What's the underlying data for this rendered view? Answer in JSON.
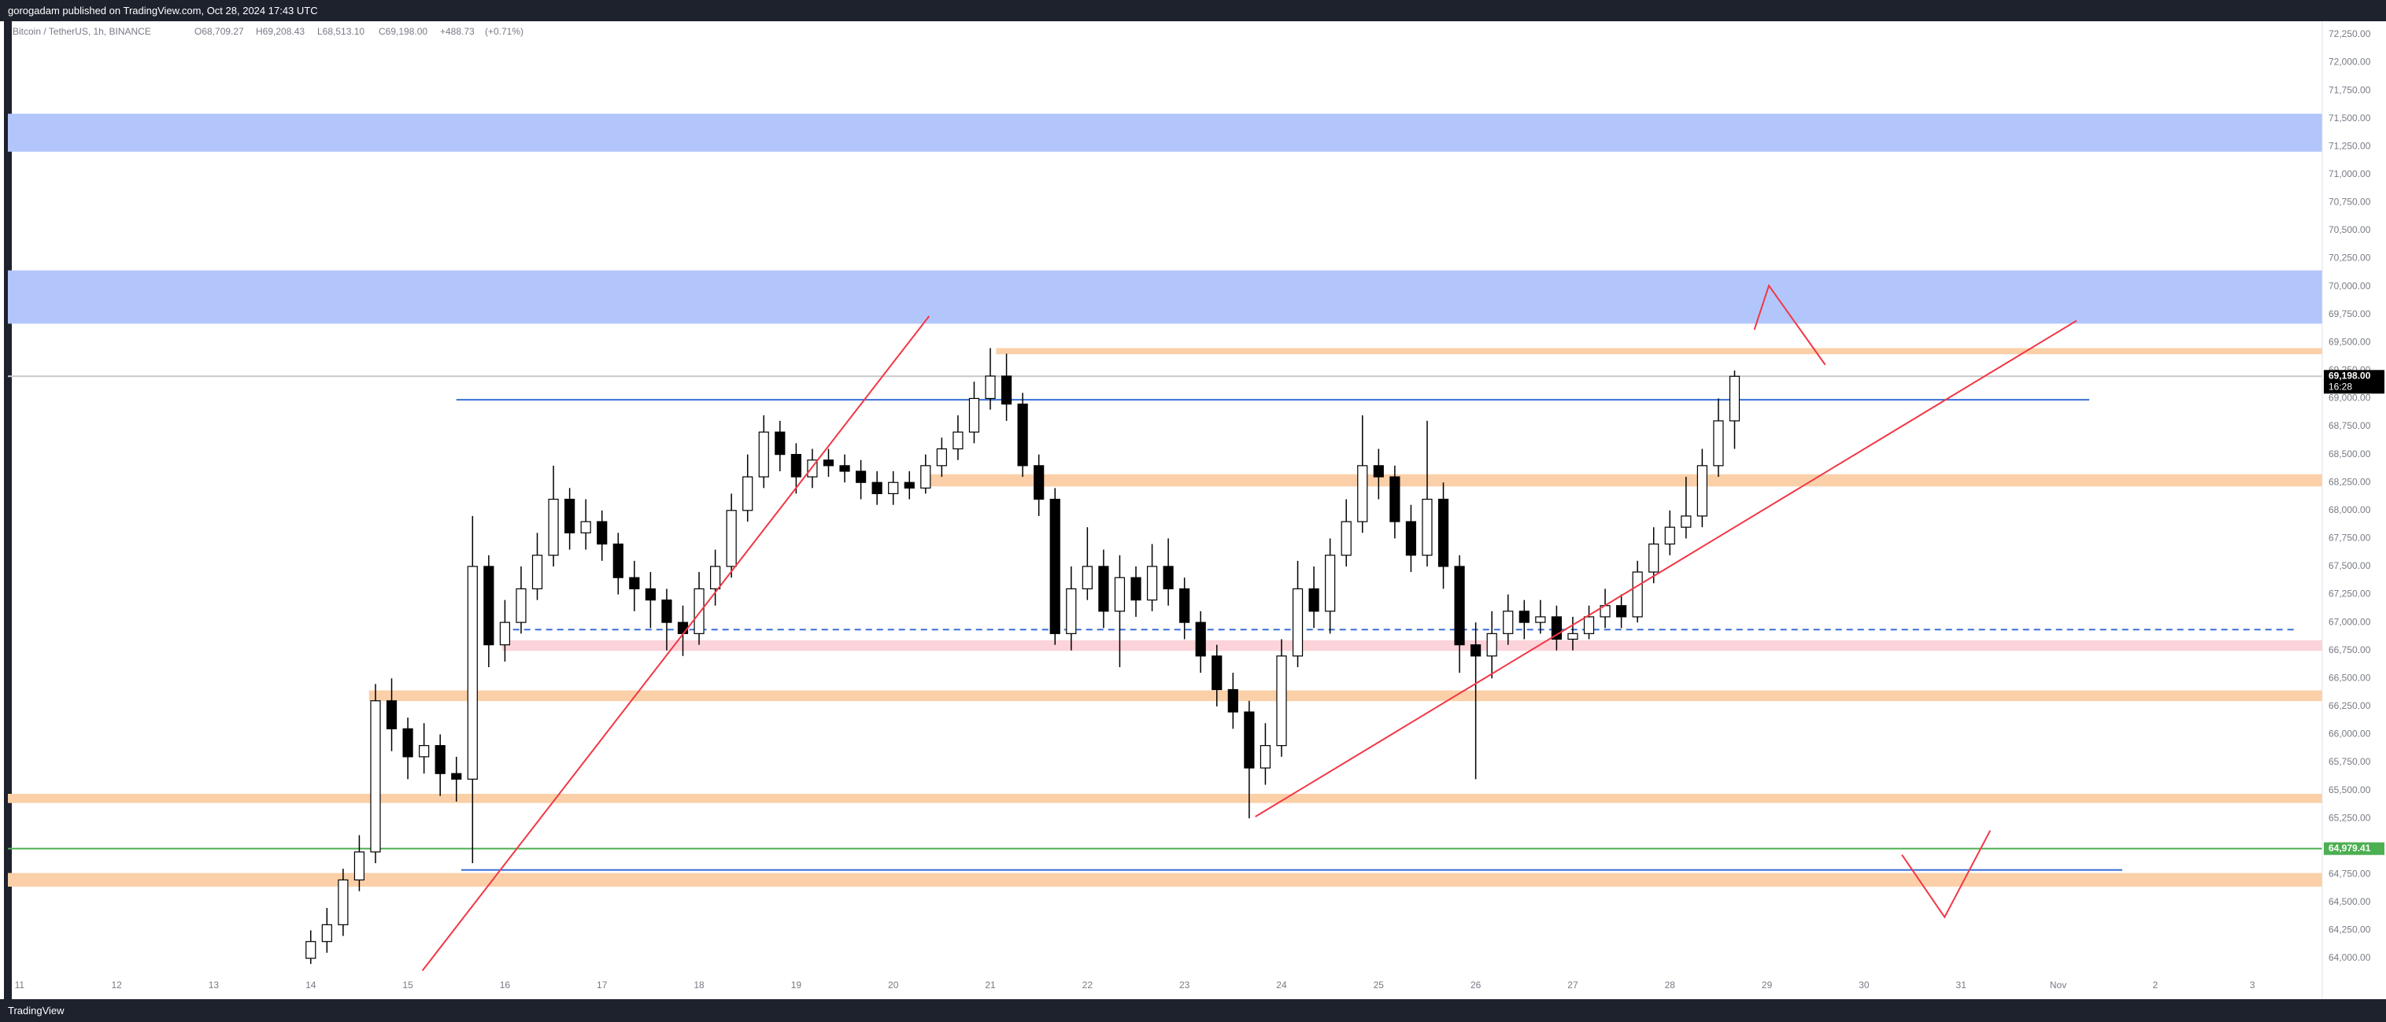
{
  "header": {
    "text": "gorogadam published on TradingView.com, Oct 28, 2024 17:43 UTC"
  },
  "footer": {
    "brand": "TradingView"
  },
  "chart_data": {
    "type": "candlestick",
    "title": "Bitcoin / TetherUS, 1h, BINANCE",
    "legend_values": [
      {
        "value": 68709.27,
        "label": "O68,709.27"
      },
      {
        "value": 69208.43,
        "label": "H69,208.43"
      },
      {
        "value": 68513.1,
        "label": "L68,513.10"
      },
      {
        "value": 69198.0,
        "label": "C69,198.00"
      },
      {
        "value": 488.73,
        "label": "+488.73"
      },
      {
        "value": 0.71,
        "label": "(+0.71%)"
      }
    ],
    "up_color": "#ffffff",
    "down_color": "#000000",
    "wick_color": "#000000",
    "xlim": [
      -0.12,
      23.72
    ],
    "ylim": [
      63895,
      72369
    ],
    "grid": false,
    "xticks": [
      {
        "value": 0,
        "label": "11"
      },
      {
        "value": 1,
        "label": "12"
      },
      {
        "value": 2,
        "label": "13"
      },
      {
        "value": 3,
        "label": "14"
      },
      {
        "value": 4,
        "label": "15"
      },
      {
        "value": 5,
        "label": "16"
      },
      {
        "value": 6,
        "label": "17"
      },
      {
        "value": 7,
        "label": "18"
      },
      {
        "value": 8,
        "label": "19"
      },
      {
        "value": 9,
        "label": "20"
      },
      {
        "value": 10,
        "label": "21"
      },
      {
        "value": 11,
        "label": "22"
      },
      {
        "value": 12,
        "label": "23"
      },
      {
        "value": 13,
        "label": "24"
      },
      {
        "value": 14,
        "label": "25"
      },
      {
        "value": 15,
        "label": "26"
      },
      {
        "value": 16,
        "label": "27"
      },
      {
        "value": 17,
        "label": "28"
      },
      {
        "value": 18,
        "label": "29"
      },
      {
        "value": 19,
        "label": "30"
      },
      {
        "value": 20,
        "label": "31"
      },
      {
        "value": 21,
        "label": "Nov"
      },
      {
        "value": 22,
        "label": "2"
      },
      {
        "value": 23,
        "label": "3"
      }
    ],
    "yticks": [
      {
        "value": 64000,
        "label": "64,000.00"
      },
      {
        "value": 64250,
        "label": "64,250.00"
      },
      {
        "value": 64500,
        "label": "64,500.00"
      },
      {
        "value": 64750,
        "label": "64,750.00"
      },
      {
        "value": 65000,
        "label": "65,000.00"
      },
      {
        "value": 65250,
        "label": "65,250.00"
      },
      {
        "value": 65500,
        "label": "65,500.00"
      },
      {
        "value": 65750,
        "label": "65,750.00"
      },
      {
        "value": 66000,
        "label": "66,000.00"
      },
      {
        "value": 66250,
        "label": "66,250.00"
      },
      {
        "value": 66500,
        "label": "66,500.00"
      },
      {
        "value": 66750,
        "label": "66,750.00"
      },
      {
        "value": 67000,
        "label": "67,000.00"
      },
      {
        "value": 67250,
        "label": "67,250.00"
      },
      {
        "value": 67500,
        "label": "67,500.00"
      },
      {
        "value": 67750,
        "label": "67,750.00"
      },
      {
        "value": 68000,
        "label": "68,000.00"
      },
      {
        "value": 68250,
        "label": "68,250.00"
      },
      {
        "value": 68500,
        "label": "68,500.00"
      },
      {
        "value": 68750,
        "label": "68,750.00"
      },
      {
        "value": 69000,
        "label": "69,000.00"
      },
      {
        "value": 69250,
        "label": "69,250.00"
      },
      {
        "value": 69500,
        "label": "69,500.00"
      },
      {
        "value": 69750,
        "label": "69,750.00"
      },
      {
        "value": 70000,
        "label": "70,000.00"
      },
      {
        "value": 70250,
        "label": "70,250.00"
      },
      {
        "value": 70500,
        "label": "70,500.00"
      },
      {
        "value": 70750,
        "label": "70,750.00"
      },
      {
        "value": 71000,
        "label": "71,000.00"
      },
      {
        "value": 71250,
        "label": "71,250.00"
      },
      {
        "value": 71500,
        "label": "71,500.00"
      },
      {
        "value": 71750,
        "label": "71,750.00"
      },
      {
        "value": 72000,
        "label": "72,000.00"
      },
      {
        "value": 72250,
        "label": "72,250.00"
      }
    ],
    "x": [
      3,
      3.1667,
      3.3333,
      3.5,
      3.6667,
      3.8333,
      4,
      4.1667,
      4.3333,
      4.5,
      4.6667,
      4.8333,
      5,
      5.1667,
      5.3333,
      5.5,
      5.6667,
      5.8333,
      6,
      6.1667,
      6.3333,
      6.5,
      6.6667,
      6.8333,
      7,
      7.1667,
      7.3333,
      7.5,
      7.6667,
      7.8333,
      8,
      8.1667,
      8.3333,
      8.5,
      8.6667,
      8.8333,
      9,
      9.1667,
      9.3333,
      9.5,
      9.6667,
      9.8333,
      10,
      10.1667,
      10.3333,
      10.5,
      10.6667,
      10.8333,
      11,
      11.1667,
      11.3333,
      11.5,
      11.6667,
      11.8333,
      12,
      12.1667,
      12.3333,
      12.5,
      12.6667,
      12.8333,
      13,
      13.1667,
      13.3333,
      13.5,
      13.6667,
      13.8333,
      14,
      14.1667,
      14.3333,
      14.5,
      14.6667,
      14.8333,
      15,
      15.1667,
      15.3333,
      15.5,
      15.6667,
      15.8333,
      16,
      16.1667,
      16.3333,
      16.5,
      16.6667,
      16.8333,
      17,
      17.1667,
      17.3333,
      17.5,
      17.6667
    ],
    "open": [
      64000,
      64150,
      64300,
      64700,
      64950,
      66300,
      66050,
      65800,
      65900,
      65650,
      65600,
      67500,
      66800,
      67000,
      67300,
      67600,
      68100,
      67800,
      67900,
      67700,
      67400,
      67300,
      67200,
      67000,
      66900,
      67300,
      67500,
      68000,
      68300,
      68700,
      68500,
      68300,
      68450,
      68400,
      68350,
      68250,
      68150,
      68250,
      68200,
      68400,
      68550,
      68700,
      69000,
      69200,
      68950,
      68400,
      68100,
      66900,
      67300,
      67500,
      67100,
      67400,
      67200,
      67500,
      67300,
      67000,
      66700,
      66400,
      66200,
      65700,
      65900,
      66700,
      67300,
      67100,
      67600,
      67900,
      68400,
      68300,
      67900,
      67600,
      68100,
      67500,
      66800,
      66700,
      66900,
      67100,
      67000,
      67050,
      66850,
      66900,
      67050,
      67150,
      67050,
      67450,
      67700,
      67850,
      67950,
      68400,
      68800
    ],
    "high": [
      64250,
      64450,
      64800,
      65100,
      66450,
      66500,
      66150,
      66100,
      66000,
      65800,
      67950,
      67600,
      67200,
      67500,
      67800,
      68400,
      68200,
      68100,
      68000,
      67800,
      67550,
      67450,
      67300,
      67150,
      67450,
      67650,
      68150,
      68500,
      68850,
      68800,
      68600,
      68550,
      68550,
      68500,
      68450,
      68350,
      68350,
      68350,
      68500,
      68650,
      68850,
      69150,
      69450,
      69400,
      69050,
      68500,
      68200,
      67500,
      67850,
      67650,
      67600,
      67500,
      67700,
      67750,
      67400,
      67100,
      66800,
      66550,
      66300,
      66100,
      66850,
      67550,
      67500,
      67750,
      68100,
      68850,
      68550,
      68400,
      68050,
      68800,
      68250,
      67600,
      67000,
      67100,
      67250,
      67200,
      67200,
      67150,
      67050,
      67150,
      67300,
      67250,
      67550,
      67850,
      68000,
      68300,
      68550,
      69000,
      69250
    ],
    "low": [
      63950,
      64050,
      64200,
      64600,
      64850,
      65850,
      65600,
      65650,
      65450,
      65400,
      64850,
      66600,
      66650,
      66900,
      67200,
      67500,
      67650,
      67650,
      67550,
      67250,
      67100,
      66950,
      66750,
      66700,
      66800,
      67150,
      67400,
      67900,
      68200,
      68350,
      68150,
      68200,
      68300,
      68250,
      68100,
      68050,
      68050,
      68100,
      68150,
      68300,
      68450,
      68600,
      68900,
      68800,
      68300,
      67950,
      66800,
      66750,
      67200,
      66950,
      66600,
      67050,
      67100,
      67150,
      66850,
      66550,
      66250,
      66050,
      65250,
      65550,
      65800,
      66600,
      66950,
      66900,
      67500,
      67800,
      68100,
      67750,
      67450,
      67500,
      67300,
      66550,
      65600,
      66500,
      66800,
      66850,
      66900,
      66750,
      66750,
      66850,
      66950,
      66950,
      67000,
      67350,
      67600,
      67750,
      67850,
      68300,
      68550
    ],
    "close": [
      64150,
      64300,
      64700,
      64950,
      66300,
      66050,
      65800,
      65900,
      65650,
      65600,
      67500,
      66800,
      67000,
      67300,
      67600,
      68100,
      67800,
      67900,
      67700,
      67400,
      67300,
      67200,
      67000,
      66900,
      67300,
      67500,
      68000,
      68300,
      68700,
      68500,
      68300,
      68450,
      68400,
      68350,
      68250,
      68150,
      68250,
      68200,
      68400,
      68550,
      68700,
      69000,
      69200,
      68950,
      68400,
      68100,
      66900,
      67300,
      67500,
      67100,
      67400,
      67200,
      67500,
      67300,
      67000,
      66700,
      66400,
      66200,
      65700,
      65900,
      66700,
      67300,
      67100,
      67600,
      67900,
      68400,
      68300,
      67900,
      67600,
      68100,
      67500,
      66800,
      66700,
      66900,
      67100,
      67000,
      67050,
      66850,
      66900,
      67050,
      67150,
      67050,
      67450,
      67700,
      67850,
      67950,
      68400,
      68800,
      69198
    ],
    "zones": [
      {
        "from": 71204,
        "to": 71543,
        "color": "#b3c6fb"
      },
      {
        "from": 69668,
        "to": 70144,
        "color": "#b3c6fb"
      },
      {
        "from": 69395,
        "to": 69450,
        "color": "#fbd0a8",
        "x_start": 10.06
      },
      {
        "from": 68214,
        "to": 68323,
        "color": "#fbd0a8",
        "x_start": 9.28
      },
      {
        "from": 66746,
        "to": 66841,
        "color": "#fcd3d9",
        "x_start": 4.97
      },
      {
        "from": 66297,
        "to": 66393,
        "color": "#fbd0a8",
        "x_start": 3.6
      },
      {
        "from": 65387,
        "to": 65469,
        "color": "#fbd0a8"
      },
      {
        "from": 64640,
        "to": 64762,
        "color": "#fbd0a8"
      }
    ],
    "hlines": [
      {
        "value": 69198,
        "color": "#c8c8c8"
      },
      {
        "value": 68988,
        "color": "#3a6fd8",
        "x_start": 4.5,
        "x_end": 21.32
      },
      {
        "value": 66936,
        "color": "#3a6fd8",
        "x_start": 4.97,
        "x_end": 23.43,
        "dashed": true
      },
      {
        "value": 64979.41,
        "color": "#4caf50"
      },
      {
        "value": 64789,
        "color": "#3a6fd8",
        "x_start": 4.55,
        "x_end": 21.66
      }
    ],
    "trendlines": [
      {
        "x": [
          4.15,
          9.37
        ],
        "y": [
          63890,
          69736
        ],
        "color": "#f23645"
      },
      {
        "x": [
          12.73,
          21.19
        ],
        "y": [
          65265,
          69695
        ],
        "color": "#f23645"
      },
      {
        "x": [
          17.87,
          18.02,
          18.6
        ],
        "y": [
          69614,
          70008,
          69301
        ],
        "color": "#f23645"
      },
      {
        "x": [
          19.39,
          19.83,
          20.3
        ],
        "y": [
          64925,
          64368,
          65142
        ],
        "color": "#f23645"
      }
    ],
    "price_tags": [
      {
        "value": 69198,
        "label": "69,198.00",
        "countdown": "16:28",
        "color": "#000000"
      },
      {
        "value": 64979.41,
        "label": "64,979.41",
        "color": "#4caf50"
      }
    ]
  }
}
